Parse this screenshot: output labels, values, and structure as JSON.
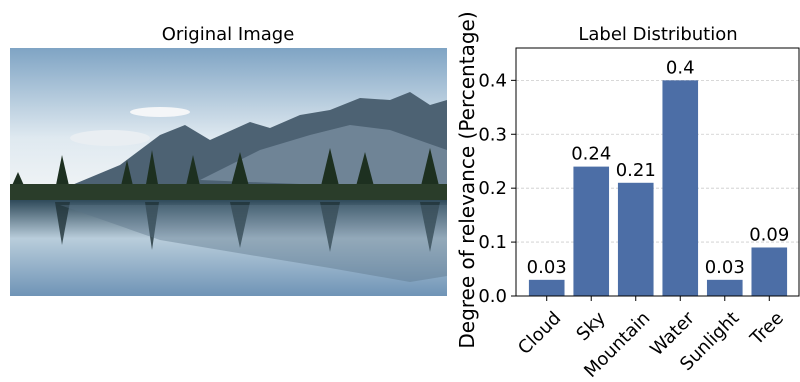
{
  "chart_data": [
    {
      "type": "image",
      "title": "Original Image"
    },
    {
      "type": "bar",
      "title": "Label Distribution",
      "y_label": "Degree of relevance (Percentage)",
      "categories": [
        "Cloud",
        "Sky",
        "Mountain",
        "Water",
        "Sunlight",
        "Tree"
      ],
      "values": [
        0.03,
        0.24,
        0.21,
        0.4,
        0.03,
        0.09
      ],
      "color": "#4c6ea6",
      "ylim": [
        0,
        0.46
      ],
      "yticks": [
        {
          "value": 0,
          "label": "0.0"
        },
        0.1,
        0.2,
        0.3,
        0.4
      ],
      "grid": true
    }
  ]
}
